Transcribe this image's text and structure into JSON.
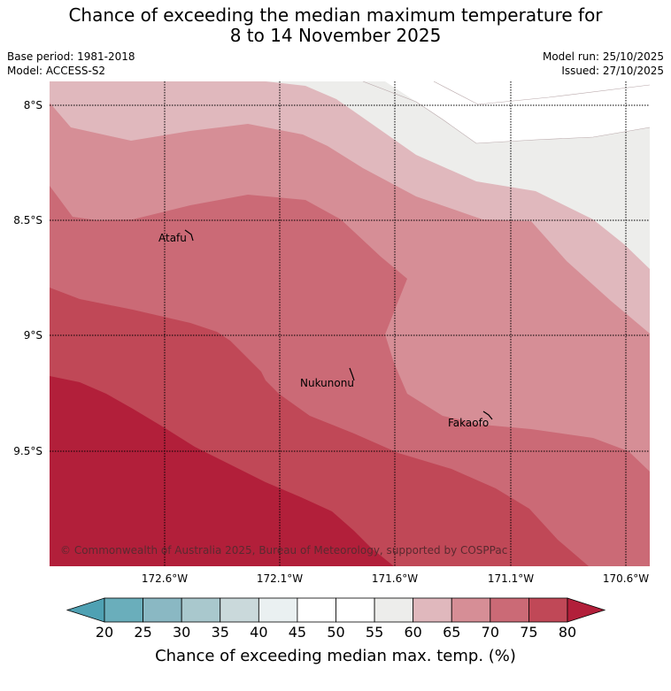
{
  "title": {
    "line1": "Chance of exceeding the median maximum temperature for",
    "line2": "8 to 14 November 2025"
  },
  "meta": {
    "base_period": "Base period: 1981-2018",
    "model": "Model: ACCESS-S2",
    "model_run": "Model run: 25/10/2025",
    "issued": "Issued: 27/10/2025"
  },
  "map": {
    "lat_labels": [
      "8°S",
      "8.5°S",
      "9°S",
      "9.5°S"
    ],
    "lon_labels": [
      "172.6°W",
      "172.1°W",
      "171.6°W",
      "171.1°W",
      "170.6°W"
    ],
    "places": [
      "Atafu",
      "Nukunonu",
      "Fakaofo"
    ],
    "copyright": "© Commonwealth of Australia 2025, Bureau of Meteorology, supported by COSPPac"
  },
  "colorbar": {
    "ticks": [
      "20",
      "25",
      "30",
      "35",
      "40",
      "45",
      "50",
      "55",
      "60",
      "65",
      "70",
      "75",
      "80"
    ],
    "label": "Chance of exceeding median max. temp. (%)",
    "colors": [
      "#6aaebb",
      "#8ab8c3",
      "#a9c8cd",
      "#cad9db",
      "#eaf0f1",
      "#ffffff",
      "#ffffff",
      "#ededeb",
      "#e0b8bd",
      "#d68e96",
      "#cb6a76",
      "#c04857"
    ],
    "under_color": "#4fa1b3",
    "over_color": "#b21f3a"
  },
  "colors": {
    "band_55_60": "#ededeb",
    "band_60_65": "#e0b8bd",
    "band_65_70": "#d68e96",
    "band_70_75": "#cb6a76",
    "band_75_80": "#c04857",
    "band_80_plus": "#b21f3a"
  }
}
